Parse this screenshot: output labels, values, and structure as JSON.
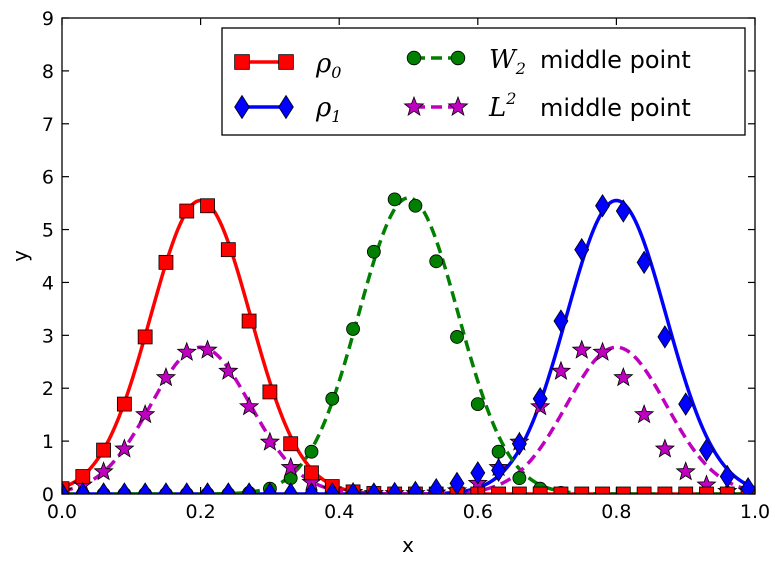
{
  "chart_data": {
    "type": "line",
    "title": "",
    "xlabel": "x",
    "ylabel": "y",
    "xlim": [
      0.0,
      1.0
    ],
    "ylim": [
      0,
      9
    ],
    "xticks": [
      "0.0",
      "0.2",
      "0.4",
      "0.6",
      "0.8",
      "1.0"
    ],
    "yticks": [
      "0",
      "1",
      "2",
      "3",
      "4",
      "5",
      "6",
      "7",
      "8",
      "9"
    ],
    "grid": false,
    "legend_position": "top-right",
    "series": [
      {
        "name_math": "ρ",
        "name_sub": "0",
        "color": "#ff0000",
        "linestyle": "solid",
        "marker": "square",
        "marker_color": "#ff0000",
        "curve": {
          "kind": "gaussian",
          "amplitude": 5.55,
          "mean": 0.2,
          "sigma": 0.072
        },
        "x": [
          0.0,
          0.03,
          0.06,
          0.09,
          0.12,
          0.15,
          0.18,
          0.21,
          0.24,
          0.27,
          0.3,
          0.33,
          0.36,
          0.39,
          0.42,
          0.45,
          0.48,
          0.51,
          0.54,
          0.57,
          0.6,
          0.63,
          0.66,
          0.69,
          0.72,
          0.75,
          0.78,
          0.81,
          0.84,
          0.87,
          0.9,
          0.93,
          0.96,
          0.99
        ],
        "y": [
          0.1,
          0.33,
          0.83,
          1.7,
          2.97,
          4.38,
          5.35,
          5.45,
          4.62,
          3.27,
          1.93,
          0.95,
          0.4,
          0.14,
          0.04,
          0.01,
          0.0,
          0.0,
          0.0,
          0.0,
          0.0,
          0.0,
          0.0,
          0.0,
          0.0,
          0.0,
          0.0,
          0.0,
          0.0,
          0.0,
          0.0,
          0.0,
          0.0,
          0.0
        ]
      },
      {
        "name_math": "ρ",
        "name_sub": "1",
        "color": "#0000ff",
        "linestyle": "solid",
        "marker": "diamond",
        "marker_color": "#0000ff",
        "curve": {
          "kind": "gaussian",
          "amplitude": 5.55,
          "mean": 0.8,
          "sigma": 0.072
        },
        "x": [
          0.0,
          0.03,
          0.06,
          0.09,
          0.12,
          0.15,
          0.18,
          0.21,
          0.24,
          0.27,
          0.3,
          0.33,
          0.36,
          0.39,
          0.42,
          0.45,
          0.48,
          0.51,
          0.54,
          0.57,
          0.6,
          0.63,
          0.66,
          0.69,
          0.72,
          0.75,
          0.78,
          0.81,
          0.84,
          0.87,
          0.9,
          0.93,
          0.96,
          0.99
        ],
        "y": [
          0.0,
          0.0,
          0.0,
          0.0,
          0.0,
          0.0,
          0.0,
          0.0,
          0.0,
          0.0,
          0.0,
          0.0,
          0.0,
          0.0,
          0.0,
          0.0,
          0.01,
          0.03,
          0.08,
          0.2,
          0.4,
          0.45,
          0.95,
          1.8,
          3.27,
          4.62,
          5.45,
          5.35,
          4.38,
          2.97,
          1.7,
          0.83,
          0.33,
          0.1
        ]
      },
      {
        "name_math": "W",
        "name_sub": "2",
        "name_text": "middle point",
        "color": "#007f00",
        "linestyle": "dashed",
        "marker": "circle",
        "marker_color": "#007f00",
        "curve": {
          "kind": "gaussian",
          "amplitude": 5.6,
          "mean": 0.5,
          "sigma": 0.072
        },
        "x": [
          0.0,
          0.03,
          0.06,
          0.09,
          0.12,
          0.15,
          0.18,
          0.21,
          0.24,
          0.27,
          0.3,
          0.33,
          0.36,
          0.39,
          0.42,
          0.45,
          0.48,
          0.51,
          0.54,
          0.57,
          0.6,
          0.63,
          0.66,
          0.69,
          0.72,
          0.75,
          0.78,
          0.81,
          0.84,
          0.87,
          0.9,
          0.93,
          0.96,
          0.99
        ],
        "y": [
          0.0,
          0.0,
          0.0,
          0.0,
          0.0,
          0.0,
          0.0,
          0.0,
          0.0,
          0.02,
          0.1,
          0.3,
          0.8,
          1.8,
          3.12,
          4.58,
          5.57,
          5.45,
          4.4,
          2.97,
          1.7,
          0.8,
          0.3,
          0.1,
          0.02,
          0.0,
          0.0,
          0.0,
          0.0,
          0.0,
          0.0,
          0.0,
          0.0,
          0.0
        ]
      },
      {
        "name_math": "L",
        "name_sup": "2",
        "name_text": "middle point",
        "color": "#bf00bf",
        "linestyle": "dashed",
        "marker": "star",
        "marker_color": "#bf00bf",
        "curve": {
          "kind": "two-gaussians",
          "amplitude": 2.775,
          "means": [
            0.2,
            0.8
          ],
          "sigma": 0.072
        },
        "x": [
          0.0,
          0.03,
          0.06,
          0.09,
          0.12,
          0.15,
          0.18,
          0.21,
          0.24,
          0.27,
          0.3,
          0.33,
          0.36,
          0.39,
          0.42,
          0.45,
          0.48,
          0.51,
          0.54,
          0.57,
          0.6,
          0.63,
          0.66,
          0.69,
          0.72,
          0.75,
          0.78,
          0.81,
          0.84,
          0.87,
          0.9,
          0.93,
          0.96,
          0.99
        ],
        "y": [
          0.05,
          0.17,
          0.42,
          0.85,
          1.5,
          2.2,
          2.68,
          2.72,
          2.32,
          1.65,
          0.98,
          0.5,
          0.22,
          0.08,
          0.03,
          0.01,
          0.01,
          0.01,
          0.02,
          0.06,
          0.2,
          0.5,
          0.98,
          1.65,
          2.32,
          2.72,
          2.68,
          2.2,
          1.5,
          0.85,
          0.42,
          0.17,
          0.05,
          0.05
        ]
      }
    ]
  }
}
